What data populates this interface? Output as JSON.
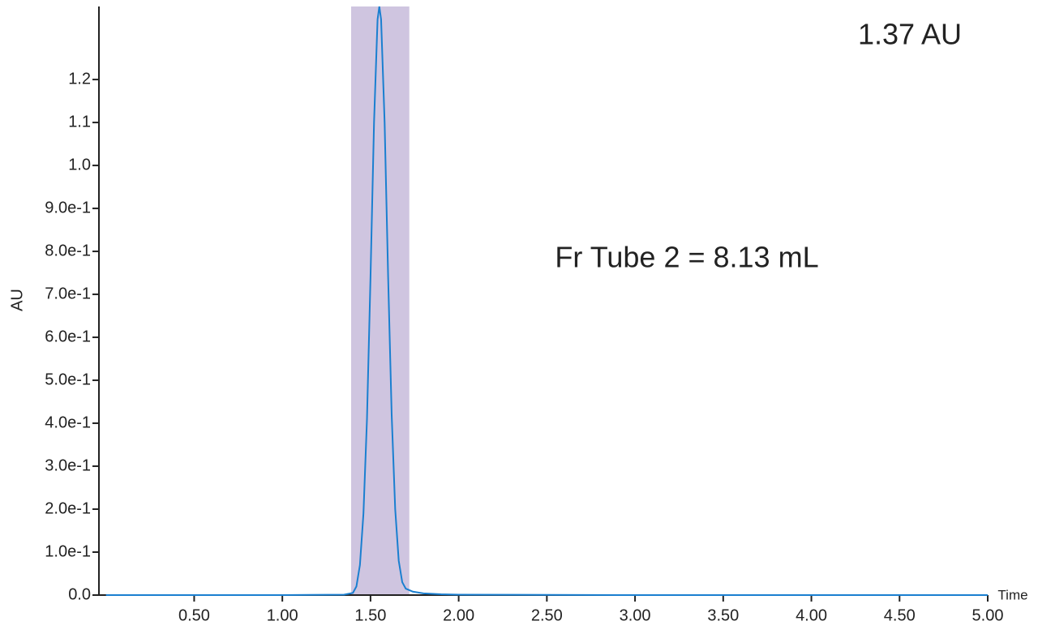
{
  "chart_data": {
    "type": "line",
    "x_label": "Time",
    "y_label": "AU",
    "annotations": [
      "1.37 AU",
      "Fr Tube 2 = 8.13 mL"
    ],
    "fraction": {
      "range": [
        1.39,
        1.72
      ],
      "color": "#cfc5e0"
    },
    "x": [
      0,
      0.5,
      1.0,
      1.35,
      1.4,
      1.42,
      1.44,
      1.46,
      1.48,
      1.5,
      1.52,
      1.54,
      1.55,
      1.56,
      1.58,
      1.6,
      1.62,
      1.64,
      1.66,
      1.68,
      1.7,
      1.74,
      1.8,
      1.9,
      2.0,
      3.0,
      4.0,
      5.0
    ],
    "series": [
      {
        "color": "#1a7fd0",
        "values": [
          0,
          0,
          0,
          0.001,
          0.005,
          0.02,
          0.07,
          0.19,
          0.41,
          0.74,
          1.1,
          1.34,
          1.37,
          1.34,
          1.1,
          0.74,
          0.42,
          0.2,
          0.08,
          0.03,
          0.015,
          0.008,
          0.004,
          0.002,
          0.001,
          0,
          0,
          0
        ]
      }
    ],
    "xlim": [
      -0.04,
      5.0
    ],
    "xticks": [
      {
        "value": 0.5,
        "label": "0.50"
      },
      {
        "value": 1.0,
        "label": "1.00"
      },
      {
        "value": 1.5,
        "label": "1.50"
      },
      {
        "value": 2.0,
        "label": "2.00"
      },
      {
        "value": 2.5,
        "label": "2.50"
      },
      {
        "value": 3.0,
        "label": "3.00"
      },
      {
        "value": 3.5,
        "label": "3.50"
      },
      {
        "value": 4.0,
        "label": "4.00"
      },
      {
        "value": 4.5,
        "label": "4.50"
      },
      {
        "value": 5.0,
        "label": "5.00"
      }
    ],
    "ylim": [
      0,
      1.37
    ],
    "yticks": [
      {
        "value": 0,
        "label": "0.0"
      },
      {
        "value": 0.1,
        "label": "1.0e-1"
      },
      {
        "value": 0.2,
        "label": "2.0e-1"
      },
      {
        "value": 0.3,
        "label": "3.0e-1"
      },
      {
        "value": 0.4,
        "label": "4.0e-1"
      },
      {
        "value": 0.5,
        "label": "5.0e-1"
      },
      {
        "value": 0.6,
        "label": "6.0e-1"
      },
      {
        "value": 0.7,
        "label": "7.0e-1"
      },
      {
        "value": 0.8,
        "label": "8.0e-1"
      },
      {
        "value": 0.9,
        "label": "9.0e-1"
      },
      {
        "value": 1.0,
        "label": "1.0"
      },
      1.1,
      1.2
    ]
  }
}
